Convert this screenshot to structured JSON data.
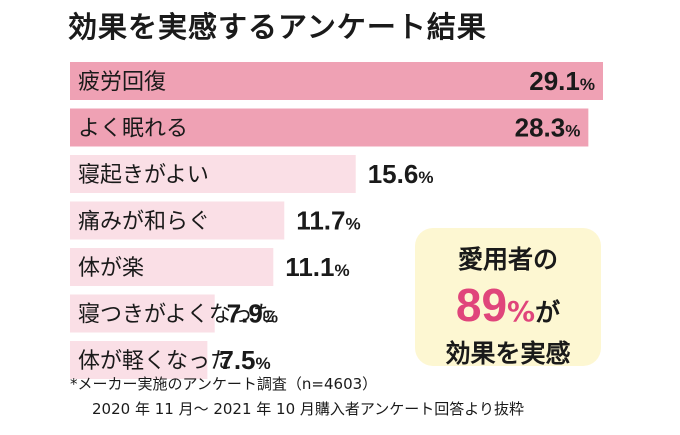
{
  "title": "効果を実感するアンケート結果",
  "chart_data": {
    "type": "bar",
    "orientation": "horizontal",
    "title": "効果を実感するアンケート結果",
    "categories": [
      "疲労回復",
      "よく眠れる",
      "寝起きがよい",
      "痛みが和らぐ",
      "体が楽",
      "寝つきがよくなった",
      "体が軽くなった"
    ],
    "values": [
      29.1,
      28.3,
      15.6,
      11.7,
      11.1,
      7.9,
      7.5
    ],
    "unit": "%",
    "colors": {
      "strong": "#efa1b4",
      "light": "#fadfe6"
    },
    "strong_count": 2
  },
  "callout": {
    "line1": "愛用者の",
    "number": "89",
    "percent": "%",
    "suffix": "が",
    "line3": "効果を実感"
  },
  "footnote": {
    "line1": "*メーカー実施のアンケート調査（n=4603）",
    "line2": "2020 年 11 月～ 2021 年 10 月購入者アンケート回答より抜粋"
  }
}
